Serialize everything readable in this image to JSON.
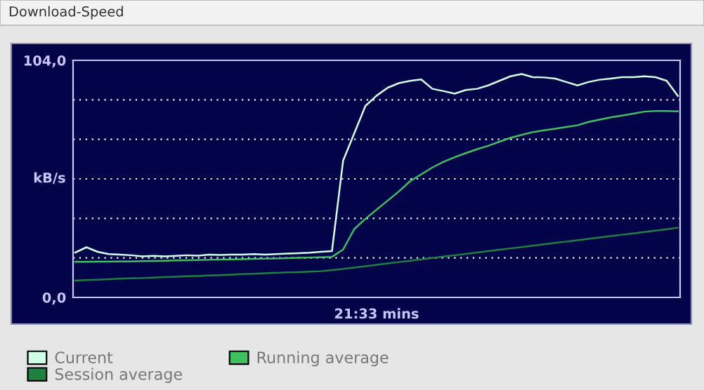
{
  "chart_data": {
    "type": "line",
    "title": "Download-Speed",
    "xlabel": "21:33 mins",
    "ylabel": "kB/s",
    "categories": [
      null,
      null,
      null,
      null,
      null,
      null,
      null,
      null,
      null,
      null,
      null,
      null,
      null,
      null,
      null,
      null,
      null,
      null,
      null,
      null,
      null,
      null,
      null,
      null,
      null,
      null,
      null,
      null,
      null,
      null,
      null,
      null,
      null,
      null,
      null,
      null,
      null,
      null,
      null,
      null,
      null,
      null,
      null,
      null,
      null,
      null,
      null,
      null,
      null,
      null,
      null,
      null,
      null,
      null,
      null
    ],
    "series": [
      {
        "name": "Current",
        "color": "#d0ffe8",
        "values": [
          19.7,
          22,
          20,
          19,
          18.8,
          18.5,
          18,
          18.2,
          18,
          18.2,
          18.5,
          18.3,
          18.8,
          18.6,
          18.8,
          18.8,
          19,
          18.8,
          19,
          19.2,
          19.4,
          19.6,
          20,
          20.3,
          60,
          72,
          84,
          88.5,
          92,
          94,
          95,
          95.6,
          91.5,
          90.5,
          89.4,
          91,
          91.5,
          93,
          95,
          97,
          98,
          96.6,
          96.5,
          96,
          94.5,
          93,
          94.5,
          95.5,
          96,
          96.6,
          96.6,
          97,
          96.6,
          95,
          88.4
        ]
      },
      {
        "name": "Running average",
        "color": "#40c060",
        "values": [
          15.6,
          15.6,
          15.7,
          15.7,
          15.8,
          15.8,
          15.9,
          16,
          16.1,
          16.2,
          16.3,
          16.4,
          16.5,
          16.6,
          16.7,
          16.8,
          16.9,
          17,
          17.1,
          17.2,
          17.4,
          17.5,
          17.6,
          17.8,
          21,
          30,
          34.5,
          38.5,
          42.5,
          46.5,
          51,
          54,
          57,
          59.5,
          61.5,
          63.3,
          65,
          66.5,
          68.3,
          70,
          71.3,
          72.5,
          73.3,
          74,
          74.8,
          75.5,
          77,
          78,
          79,
          79.8,
          80.6,
          81.5,
          81.8,
          81.8,
          81.6
        ]
      },
      {
        "name": "Session average",
        "color": "#208040",
        "values": [
          7.4,
          7.6,
          7.8,
          8,
          8.2,
          8.4,
          8.5,
          8.7,
          8.9,
          9.1,
          9.3,
          9.4,
          9.6,
          9.8,
          10,
          10.2,
          10.4,
          10.6,
          10.8,
          11,
          11.1,
          11.3,
          11.5,
          12,
          12.5,
          13.1,
          13.7,
          14.3,
          14.9,
          15.5,
          16.1,
          16.7,
          17.3,
          17.9,
          18.5,
          19.1,
          19.7,
          20.3,
          20.9,
          21.5,
          22.1,
          22.7,
          23.3,
          23.9,
          24.5,
          25.1,
          25.7,
          26.3,
          26.9,
          27.5,
          28.1,
          28.7,
          29.3,
          29.9,
          30.6
        ]
      }
    ],
    "ylim": [
      0,
      104
    ],
    "yticks": [
      {
        "value": 0,
        "label": "0,0"
      },
      {
        "value": 17.33,
        "label": null
      },
      {
        "value": 34.67,
        "label": null
      },
      {
        "value": 52,
        "label": null
      },
      {
        "value": 69.33,
        "label": null
      },
      {
        "value": 86.67,
        "label": null
      },
      {
        "value": 104,
        "label": "104,0"
      }
    ],
    "grid": "y",
    "legend": "bottom",
    "tick_labels": "y",
    "marker": "none",
    "line_style": "solid"
  }
}
